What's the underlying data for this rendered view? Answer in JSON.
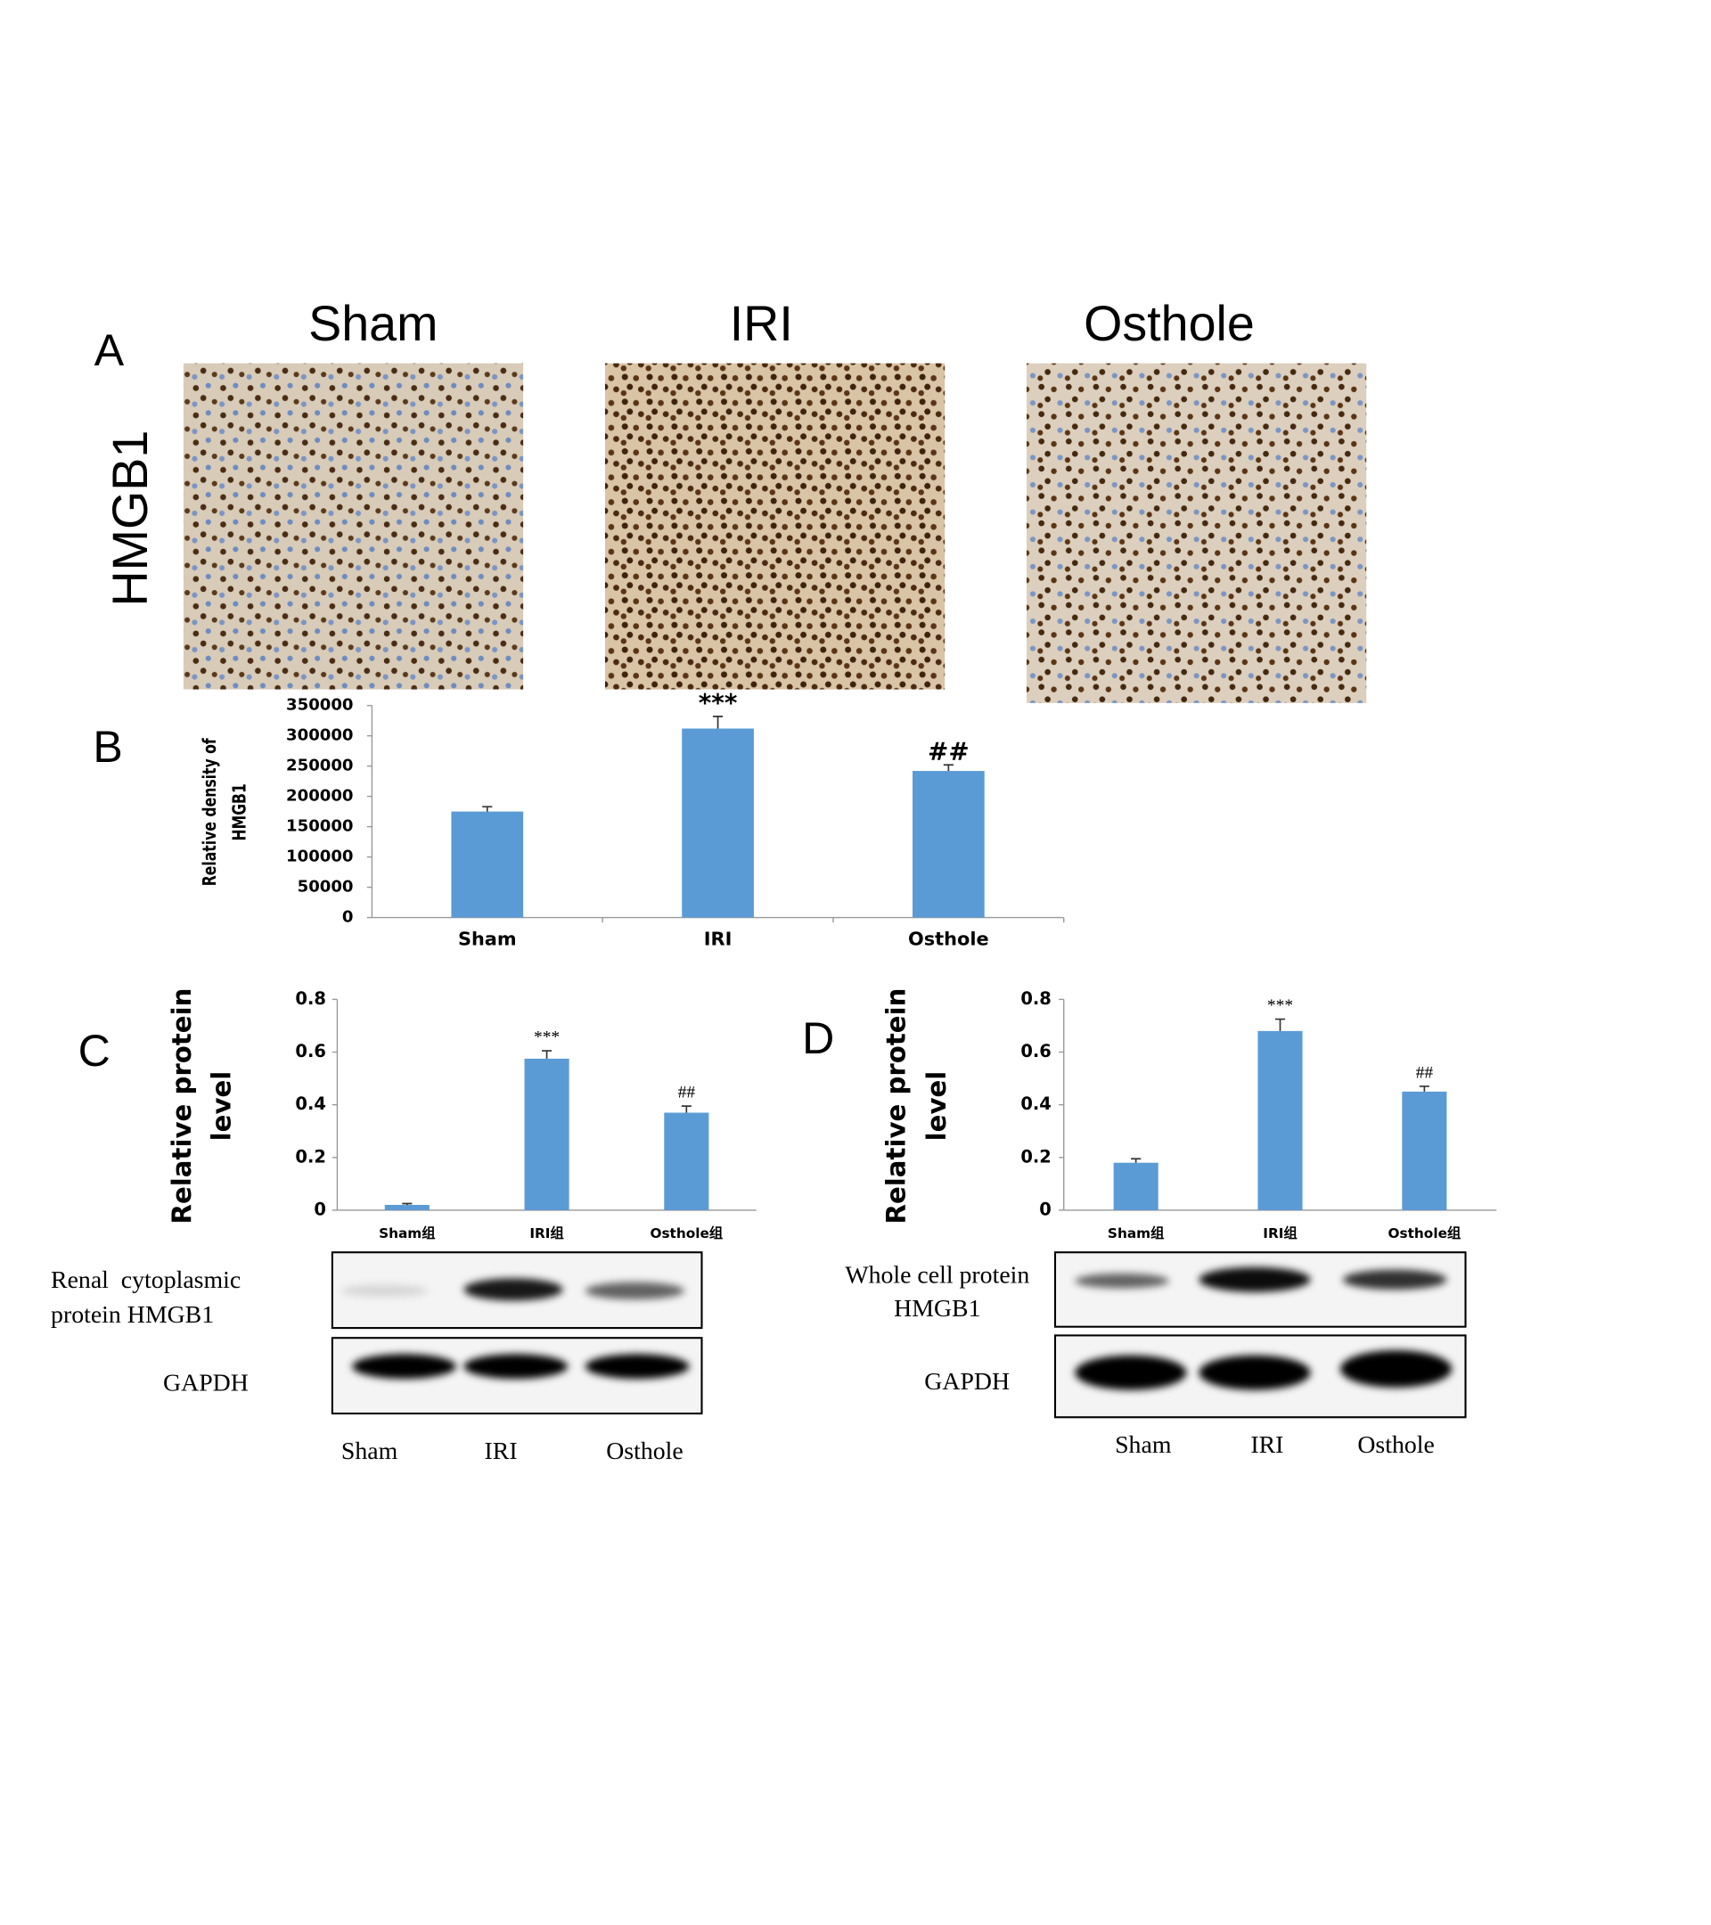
{
  "panel_labels": [
    "A",
    "B",
    "C",
    "D"
  ],
  "histology": {
    "row_label": "HMGB1",
    "columns": [
      "Sham",
      "IRI",
      "Osthole"
    ]
  },
  "chart_data": [
    {
      "type": "bar",
      "ylabel": [
        "Relative density of",
        "HMGB1"
      ],
      "categories": [
        "Sham",
        "IRI",
        "Osthole"
      ],
      "values": [
        175000,
        312000,
        242000
      ],
      "errors": [
        8000,
        20000,
        10000
      ],
      "annotations": [
        null,
        "***",
        "##"
      ],
      "color": "#5b9bd5",
      "ylim": [
        0,
        350000
      ],
      "yticks": [
        0,
        50000,
        100000,
        150000,
        200000,
        250000,
        300000,
        350000
      ]
    },
    {
      "type": "bar",
      "ylabel": [
        "Relative protein",
        "level"
      ],
      "categories": [
        "Sham组",
        "IRI组",
        "Osthole组"
      ],
      "values": [
        0.02,
        0.575,
        0.37
      ],
      "errors": [
        0.005,
        0.03,
        0.025
      ],
      "annotations": [
        null,
        "***",
        "##"
      ],
      "color": "#5b9bd5",
      "ylim": [
        0,
        0.8
      ],
      "yticks": [
        0,
        0.2,
        0.4,
        0.6,
        0.8
      ]
    },
    {
      "type": "bar",
      "ylabel": [
        "Relative protein",
        "level"
      ],
      "categories": [
        "Sham组",
        "IRI组",
        "Osthole组"
      ],
      "values": [
        0.18,
        0.68,
        0.45
      ],
      "errors": [
        0.015,
        0.045,
        0.02
      ],
      "annotations": [
        null,
        "***",
        "##"
      ],
      "color": "#5b9bd5",
      "ylim": [
        0,
        0.8
      ],
      "yticks": [
        0,
        0.2,
        0.4,
        0.6,
        0.8
      ]
    }
  ],
  "blots": [
    {
      "protein": [
        "Renal  cytoplasmic",
        "protein HMGB1"
      ],
      "control": "GAPDH",
      "lanes": [
        "Sham",
        "IRI",
        "Osthole"
      ]
    },
    {
      "protein": [
        "Whole cell protein",
        "HMGB1"
      ],
      "control": "GAPDH",
      "lanes": [
        "Sham",
        "IRI",
        "Osthole"
      ]
    }
  ]
}
